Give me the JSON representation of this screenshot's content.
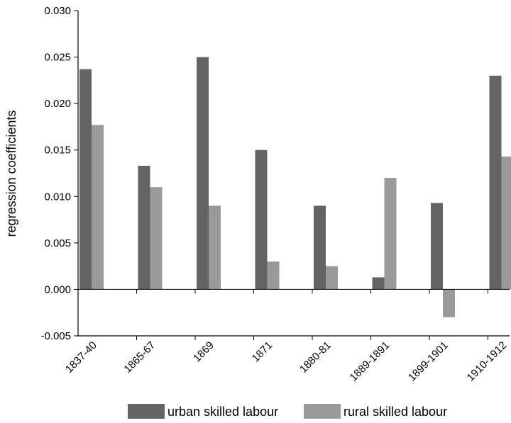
{
  "chart_data": {
    "type": "bar",
    "ylabel": "regression coefficients",
    "ylim": [
      -0.005,
      0.03
    ],
    "yticks": [
      "-0.005",
      "0.000",
      "0.005",
      "0.010",
      "0.015",
      "0.020",
      "0.025",
      "0.030"
    ],
    "categories": [
      "1837-40",
      "1865-67",
      "1869",
      "1871",
      "1880-81",
      "1889-1891",
      "1899-1901",
      "1910-1912"
    ],
    "series": [
      {
        "name": "urban skilled labour",
        "color": "#646464",
        "values": [
          0.0237,
          0.0133,
          0.025,
          0.015,
          0.009,
          0.0013,
          0.0093,
          0.023
        ]
      },
      {
        "name": "rural skilled labour",
        "color": "#9a9a9a",
        "values": [
          0.0177,
          0.011,
          0.009,
          0.003,
          0.0025,
          0.012,
          -0.003,
          0.0143
        ]
      }
    ],
    "grid": false,
    "legend": "bottom"
  }
}
